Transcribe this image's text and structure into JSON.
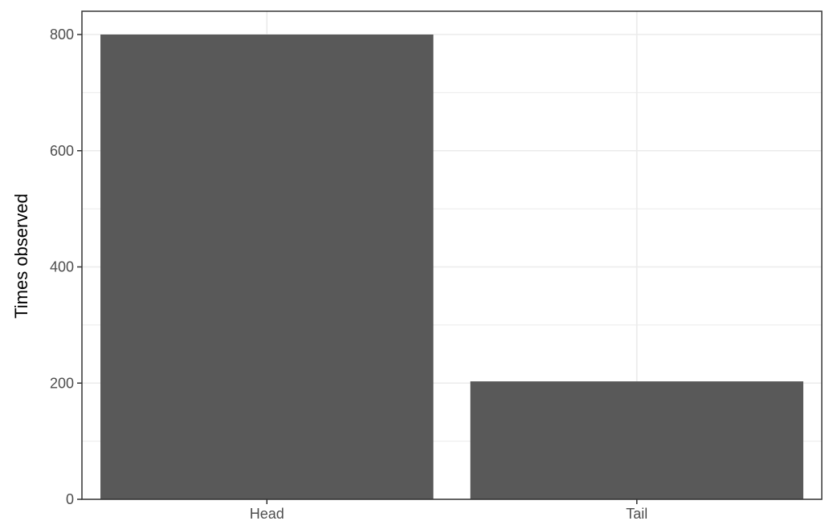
{
  "chart_data": {
    "type": "bar",
    "title": "",
    "xlabel": "",
    "ylabel": "Times observed",
    "categories": [
      "Head",
      "Tail"
    ],
    "values": [
      800,
      203
    ],
    "ylim": [
      0,
      800
    ],
    "yticks": [
      0,
      200,
      400,
      600,
      800
    ],
    "ytick_labels": [
      "0",
      "200",
      "400",
      "600",
      "800"
    ],
    "grid": true,
    "legend": "none",
    "colors": {
      "bar": "#595959",
      "grid": "#ebebeb",
      "panel_border": "#333333",
      "tick_label": "#4d4d4d",
      "background": "#ffffff"
    }
  }
}
